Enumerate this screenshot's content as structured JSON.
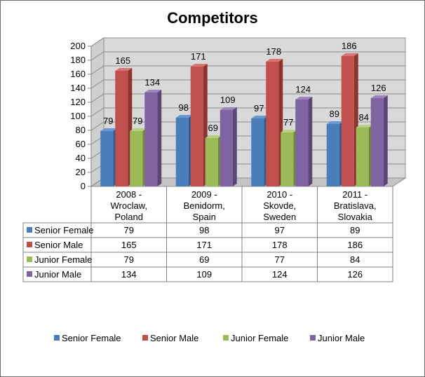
{
  "chart_data": {
    "type": "bar",
    "title": "Competitors",
    "categories": [
      [
        "2008 -",
        "Wroclaw,",
        "Poland"
      ],
      [
        "2009 -",
        "Benidorm,",
        "Spain"
      ],
      [
        "2010 -",
        "Skovde,",
        "Sweden"
      ],
      [
        "2011 -",
        "Bratislava,",
        "Slovakia"
      ]
    ],
    "series": [
      {
        "name": "Senior Female",
        "values": [
          79,
          98,
          97,
          89
        ],
        "color": "#4a7ebb",
        "light": "#6b98d0",
        "dark": "#2f5b92"
      },
      {
        "name": "Senior Male",
        "values": [
          165,
          171,
          178,
          186
        ],
        "color": "#c0504d",
        "light": "#d77673",
        "dark": "#8f3330"
      },
      {
        "name": "Junior Female",
        "values": [
          79,
          69,
          77,
          84
        ],
        "color": "#9bbb59",
        "light": "#b5d07f",
        "dark": "#6f8b38"
      },
      {
        "name": "Junior Male",
        "values": [
          134,
          109,
          124,
          126
        ],
        "color": "#8064a2",
        "light": "#9d86bb",
        "dark": "#5c4578"
      }
    ],
    "ylim": [
      0,
      200
    ],
    "yticks": [
      0,
      20,
      40,
      60,
      80,
      100,
      120,
      140,
      160,
      180,
      200
    ],
    "grid": true,
    "legend": "bottom",
    "data_table": true,
    "wall_color": "#d9d9d9"
  }
}
